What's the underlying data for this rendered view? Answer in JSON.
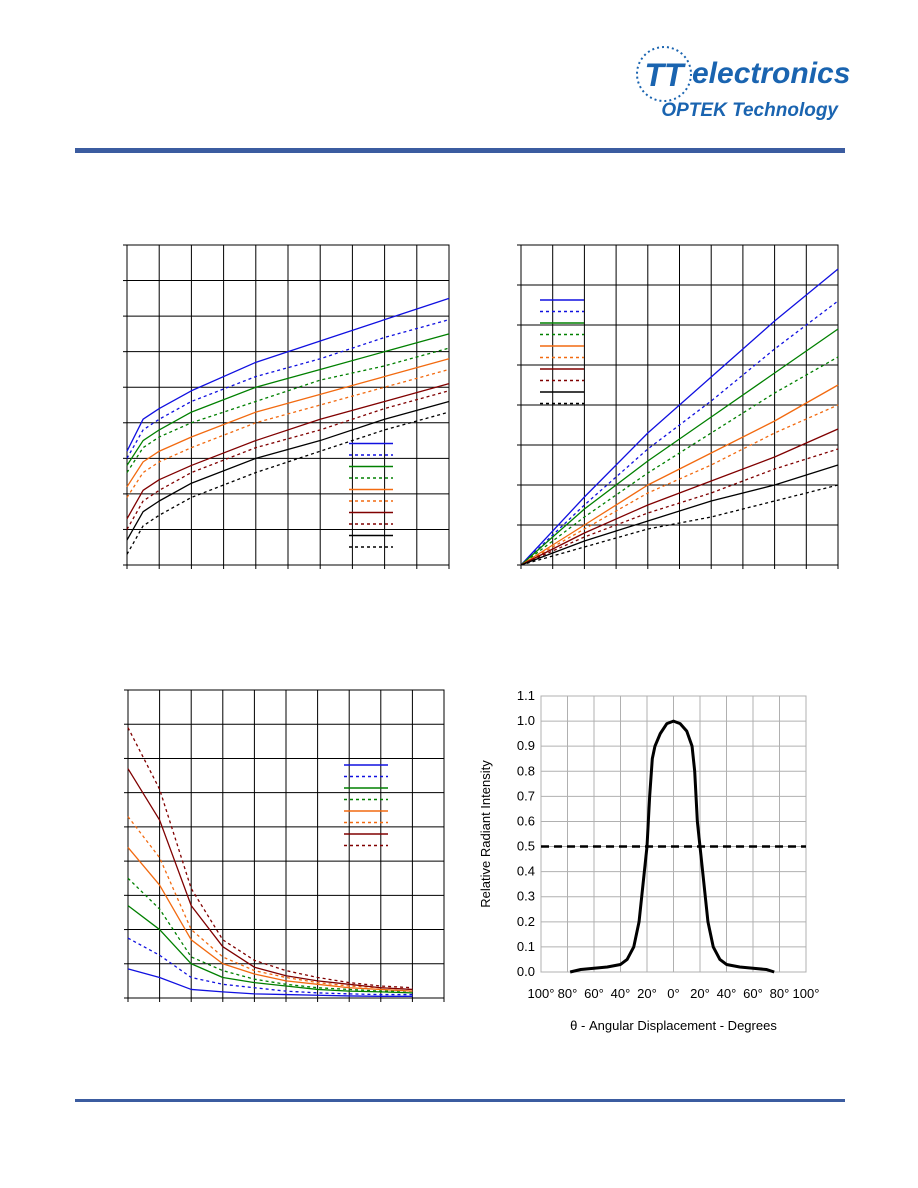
{
  "header": {
    "logo": "TT",
    "brand": "electronics",
    "division": "OPTEK Technology"
  },
  "chart_data": [
    {
      "type": "line",
      "xlim": [
        0,
        10
      ],
      "ylim": [
        0,
        9
      ],
      "xgrid": [
        0,
        1,
        2,
        3,
        4,
        5,
        6,
        7,
        8,
        9,
        10
      ],
      "ygrid": [
        0,
        1,
        2,
        3,
        4,
        5,
        6,
        7,
        8,
        9
      ],
      "legend": "lower right",
      "x": [
        0,
        0.5,
        1,
        2,
        4,
        6,
        8,
        10
      ],
      "series": [
        {
          "color": "#1010e0",
          "dash": false,
          "values": [
            3.2,
            4.1,
            4.4,
            4.9,
            5.7,
            6.3,
            6.9,
            7.5
          ]
        },
        {
          "color": "#1010e0",
          "dash": true,
          "values": [
            3.0,
            3.8,
            4.1,
            4.6,
            5.3,
            5.8,
            6.4,
            6.9
          ]
        },
        {
          "color": "#008000",
          "dash": false,
          "values": [
            2.8,
            3.5,
            3.8,
            4.3,
            5.0,
            5.5,
            6.0,
            6.5
          ]
        },
        {
          "color": "#008000",
          "dash": true,
          "values": [
            2.6,
            3.3,
            3.6,
            4.0,
            4.6,
            5.2,
            5.6,
            6.1
          ]
        },
        {
          "color": "#f26a10",
          "dash": false,
          "values": [
            2.2,
            2.9,
            3.2,
            3.6,
            4.3,
            4.8,
            5.3,
            5.8
          ]
        },
        {
          "color": "#f26a10",
          "dash": true,
          "values": [
            1.9,
            2.6,
            2.9,
            3.3,
            4.0,
            4.5,
            5.0,
            5.5
          ]
        },
        {
          "color": "#800000",
          "dash": false,
          "values": [
            1.3,
            2.1,
            2.4,
            2.8,
            3.5,
            4.1,
            4.6,
            5.1
          ]
        },
        {
          "color": "#800000",
          "dash": true,
          "values": [
            1.0,
            1.8,
            2.1,
            2.6,
            3.3,
            3.8,
            4.4,
            4.9
          ]
        },
        {
          "color": "#000000",
          "dash": false,
          "values": [
            0.7,
            1.5,
            1.8,
            2.3,
            3.0,
            3.5,
            4.1,
            4.6
          ]
        },
        {
          "color": "#000000",
          "dash": true,
          "values": [
            0.3,
            1.1,
            1.4,
            1.9,
            2.6,
            3.2,
            3.8,
            4.3
          ]
        }
      ]
    },
    {
      "type": "line",
      "xlim": [
        0,
        10
      ],
      "ylim": [
        0,
        8
      ],
      "xgrid": [
        0,
        1,
        2,
        3,
        4,
        5,
        6,
        7,
        8,
        9,
        10
      ],
      "ygrid": [
        0,
        1,
        2,
        3,
        4,
        5,
        6,
        7,
        8
      ],
      "legend": "upper left",
      "x": [
        0,
        2,
        4,
        6,
        8,
        10
      ],
      "series": [
        {
          "color": "#1010e0",
          "dash": false,
          "values": [
            0,
            1.7,
            3.3,
            4.7,
            6.1,
            7.4
          ]
        },
        {
          "color": "#1010e0",
          "dash": true,
          "values": [
            0,
            1.5,
            2.9,
            4.1,
            5.4,
            6.6
          ]
        },
        {
          "color": "#008000",
          "dash": false,
          "values": [
            0,
            1.4,
            2.6,
            3.7,
            4.8,
            5.9
          ]
        },
        {
          "color": "#008000",
          "dash": true,
          "values": [
            0,
            1.2,
            2.3,
            3.3,
            4.3,
            5.2
          ]
        },
        {
          "color": "#f26a10",
          "dash": false,
          "values": [
            0,
            1.0,
            2.0,
            2.8,
            3.6,
            4.5
          ]
        },
        {
          "color": "#f26a10",
          "dash": true,
          "values": [
            0,
            0.9,
            1.8,
            2.5,
            3.3,
            4.0
          ]
        },
        {
          "color": "#800000",
          "dash": false,
          "values": [
            0,
            0.8,
            1.5,
            2.1,
            2.7,
            3.4
          ]
        },
        {
          "color": "#800000",
          "dash": true,
          "values": [
            0,
            0.7,
            1.3,
            1.8,
            2.4,
            2.9
          ]
        },
        {
          "color": "#000000",
          "dash": false,
          "values": [
            0,
            0.6,
            1.1,
            1.6,
            2.0,
            2.5
          ]
        },
        {
          "color": "#000000",
          "dash": true,
          "values": [
            0,
            0.45,
            0.9,
            1.2,
            1.6,
            2.0
          ]
        }
      ]
    },
    {
      "type": "line",
      "xlim": [
        0,
        10
      ],
      "ylim": [
        0,
        9
      ],
      "xgrid": [
        0,
        1,
        2,
        3,
        4,
        5,
        6,
        7,
        8,
        9,
        10
      ],
      "ygrid": [
        0,
        1,
        2,
        3,
        4,
        5,
        6,
        7,
        8,
        9
      ],
      "legend": "upper right",
      "x": [
        0,
        1,
        2,
        3,
        4,
        5,
        6,
        7,
        8,
        9
      ],
      "series": [
        {
          "color": "#1010e0",
          "dash": false,
          "values": [
            0.85,
            0.6,
            0.25,
            0.18,
            0.12,
            0.1,
            0.08,
            0.06,
            0.05,
            0.05
          ]
        },
        {
          "color": "#1010e0",
          "dash": true,
          "values": [
            1.75,
            1.25,
            0.6,
            0.4,
            0.3,
            0.2,
            0.15,
            0.12,
            0.1,
            0.1
          ]
        },
        {
          "color": "#008000",
          "dash": false,
          "values": [
            2.7,
            2.0,
            1.0,
            0.6,
            0.45,
            0.35,
            0.25,
            0.2,
            0.18,
            0.15
          ]
        },
        {
          "color": "#008000",
          "dash": true,
          "values": [
            3.5,
            2.6,
            1.2,
            0.8,
            0.55,
            0.4,
            0.3,
            0.25,
            0.2,
            0.2
          ]
        },
        {
          "color": "#f26a10",
          "dash": false,
          "values": [
            4.4,
            3.3,
            1.7,
            1.0,
            0.7,
            0.5,
            0.4,
            0.3,
            0.25,
            0.2
          ]
        },
        {
          "color": "#f26a10",
          "dash": true,
          "values": [
            5.3,
            4.1,
            2.0,
            1.2,
            0.8,
            0.6,
            0.45,
            0.35,
            0.3,
            0.25
          ]
        },
        {
          "color": "#800000",
          "dash": false,
          "values": [
            6.7,
            5.2,
            2.7,
            1.5,
            0.9,
            0.65,
            0.5,
            0.4,
            0.3,
            0.25
          ]
        },
        {
          "color": "#800000",
          "dash": true,
          "values": [
            7.9,
            6.1,
            3.2,
            1.7,
            1.1,
            0.8,
            0.6,
            0.45,
            0.35,
            0.3
          ]
        }
      ]
    },
    {
      "type": "line",
      "xlim": [
        -100,
        100
      ],
      "ylim": [
        0,
        1.1
      ],
      "xticks": [
        {
          "value": -100,
          "label": "100°"
        },
        {
          "value": -80,
          "label": "80°"
        },
        {
          "value": -60,
          "label": "60°"
        },
        {
          "value": -40,
          "label": "40°"
        },
        {
          "value": -20,
          "label": "20°"
        },
        {
          "value": 0,
          "label": "0°"
        },
        {
          "value": 20,
          "label": "20°"
        },
        {
          "value": 40,
          "label": "40°"
        },
        {
          "value": 60,
          "label": "60°"
        },
        {
          "value": 80,
          "label": "80°"
        },
        {
          "value": 100,
          "label": "100°"
        }
      ],
      "yticks": [
        {
          "value": 0,
          "label": "0.0"
        },
        0.1,
        0.2,
        0.3,
        0.4,
        0.5,
        0.6,
        0.7,
        0.8,
        0.9,
        {
          "value": 1,
          "label": "1.0"
        },
        1.1
      ],
      "xlabel": "θ - Angular Displacement - Degrees",
      "ylabel": "Relative Radiant Intensity",
      "reference_line": 0.5,
      "x": [
        -78,
        -70,
        -60,
        -50,
        -40,
        -35,
        -30,
        -26,
        -24,
        -22,
        -20,
        -18,
        -16,
        -14,
        -10,
        -5,
        0,
        5,
        10,
        14,
        16,
        18,
        20,
        22,
        24,
        26,
        30,
        35,
        40,
        50,
        60,
        70,
        76
      ],
      "series": [
        {
          "color": "#000000",
          "dash": false,
          "values": [
            0,
            0.01,
            0.015,
            0.02,
            0.03,
            0.05,
            0.1,
            0.2,
            0.3,
            0.4,
            0.5,
            0.7,
            0.85,
            0.9,
            0.95,
            0.99,
            1.0,
            0.99,
            0.96,
            0.9,
            0.8,
            0.6,
            0.5,
            0.4,
            0.3,
            0.2,
            0.1,
            0.05,
            0.03,
            0.02,
            0.015,
            0.01,
            0
          ]
        }
      ]
    }
  ]
}
